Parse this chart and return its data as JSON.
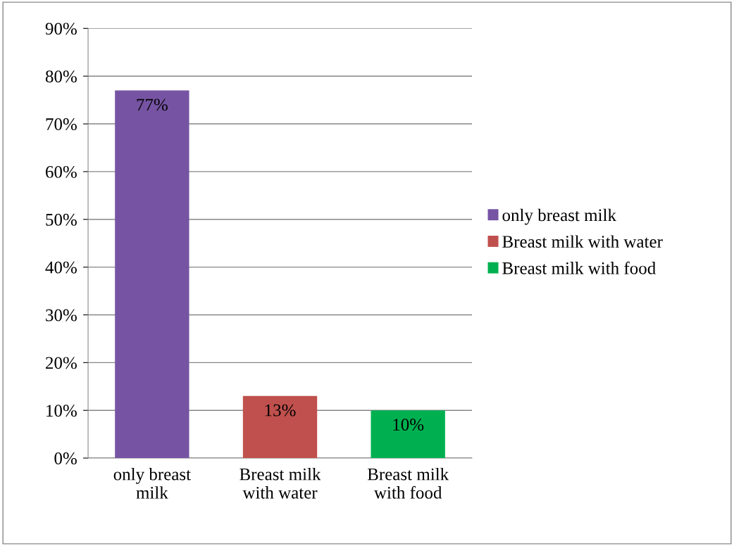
{
  "chart_data": {
    "type": "bar",
    "categories": [
      "only breast\nmilk",
      "Breast milk\nwith water",
      "Breast milk\nwith food"
    ],
    "series": [
      {
        "name": "only breast milk",
        "color": "#7654a3",
        "values": [
          77,
          null,
          null
        ],
        "value_labels": [
          "77%",
          null,
          null
        ]
      },
      {
        "name": "Breast milk with water",
        "color": "#c0504d",
        "values": [
          null,
          13,
          null
        ],
        "value_labels": [
          null,
          "13%",
          null
        ]
      },
      {
        "name": "Breast milk with food",
        "color": "#00b050",
        "values": [
          null,
          null,
          10
        ],
        "value_labels": [
          null,
          null,
          "10%"
        ]
      }
    ],
    "ylim": [
      0,
      90
    ],
    "yticks": [
      {
        "value": 0,
        "label": "0%"
      },
      {
        "value": 10,
        "label": "10%"
      },
      {
        "value": 20,
        "label": "20%"
      },
      {
        "value": 30,
        "label": "30%"
      },
      {
        "value": 40,
        "label": "40%"
      },
      {
        "value": 50,
        "label": "50%"
      },
      {
        "value": 60,
        "label": "60%"
      },
      {
        "value": 70,
        "label": "70%"
      },
      {
        "value": 80,
        "label": "80%"
      },
      {
        "value": 90,
        "label": "90%"
      }
    ],
    "grid": "y",
    "legend": "right"
  }
}
